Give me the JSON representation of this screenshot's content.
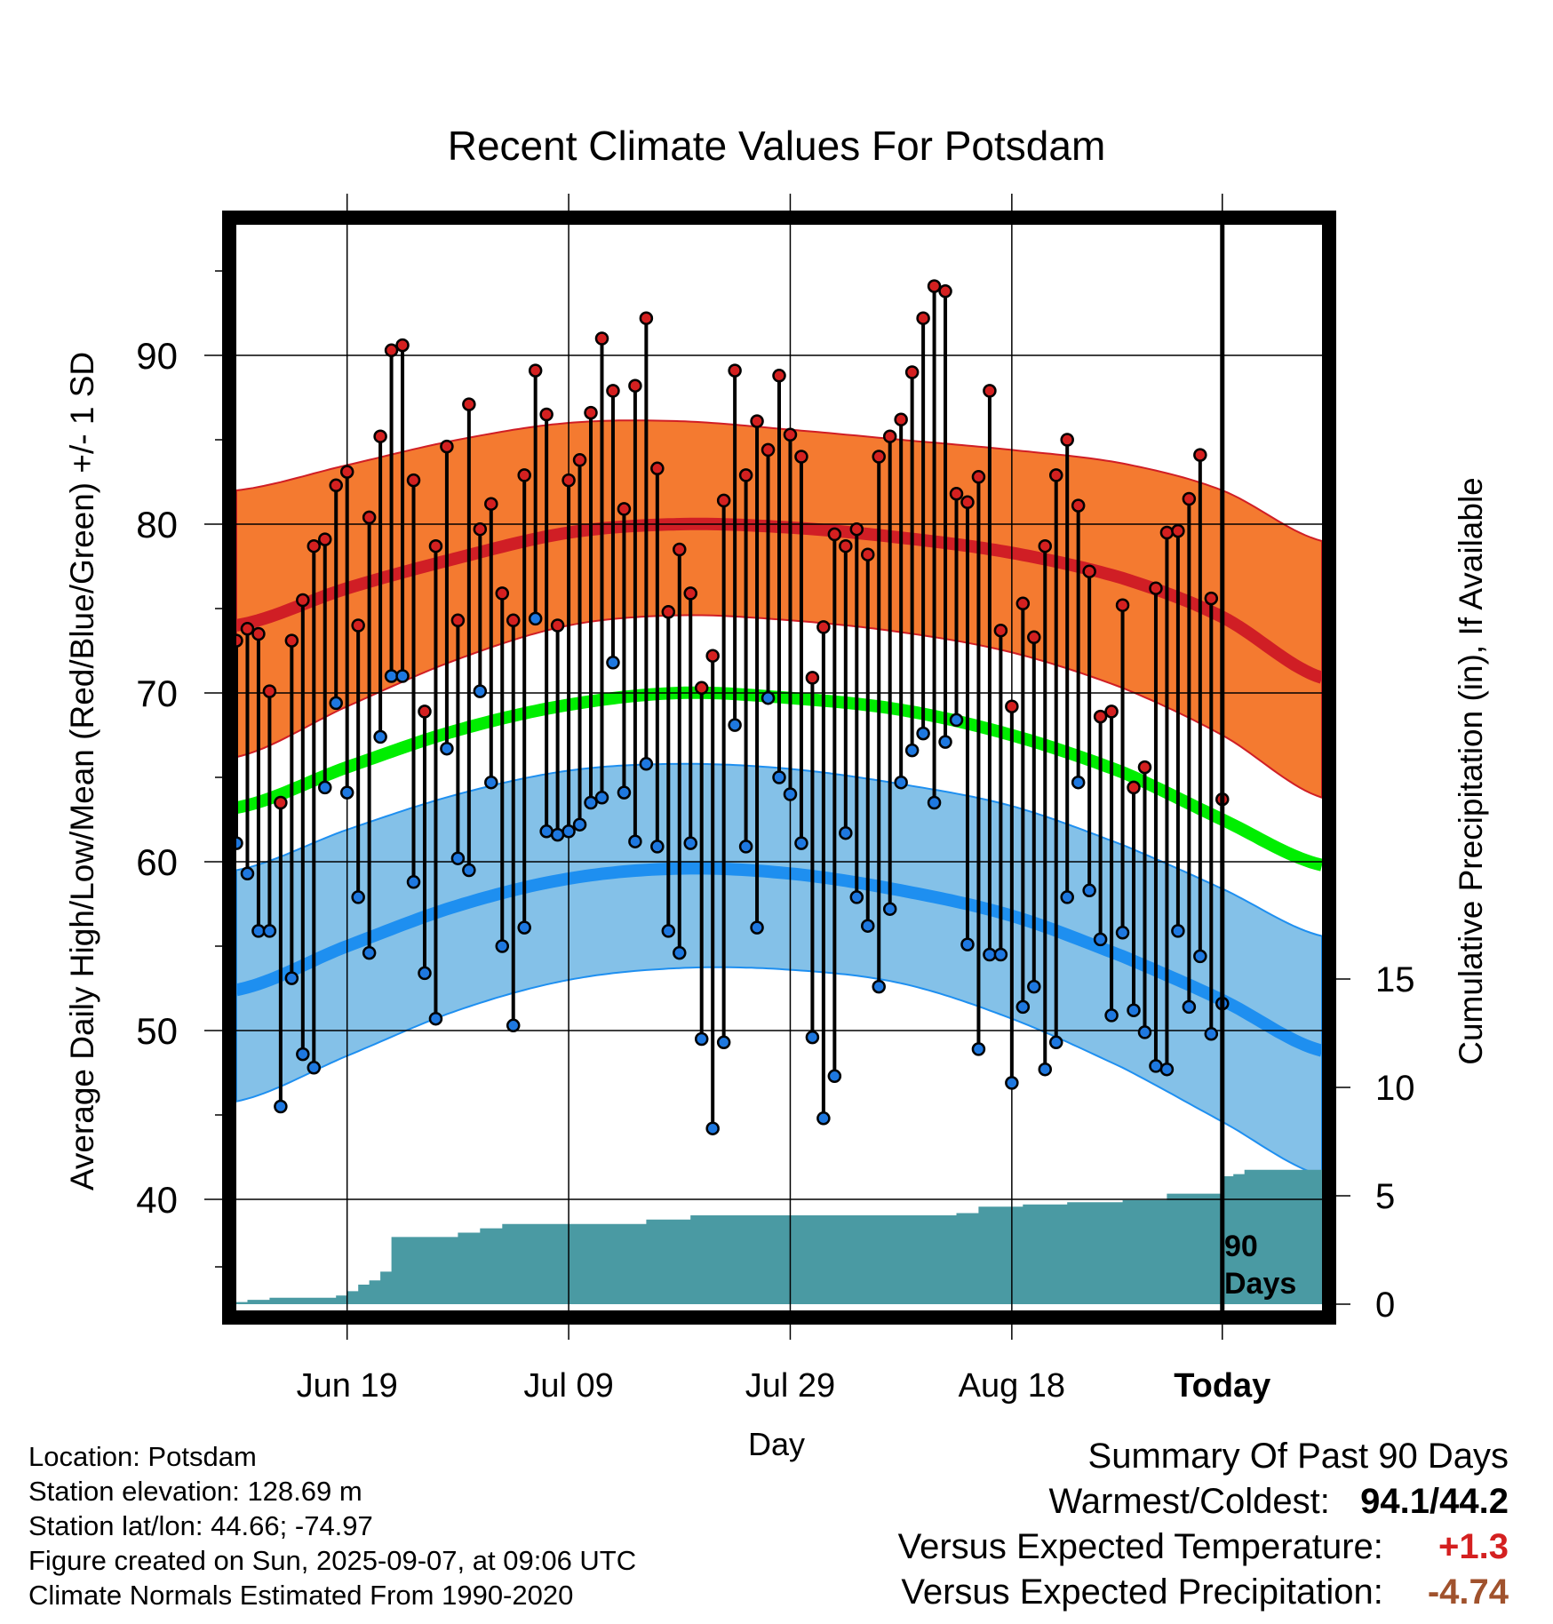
{
  "chart_data": {
    "type": "line",
    "title": "Recent Climate Values For Potsdam",
    "xlabel": "Day",
    "ylabel": "Average Daily High/Low/Mean (Red/Blue/Green) +/- 1 SD",
    "ylabel_right": "Cumulative Precipitation (in), If Available",
    "ylim": [
      35,
      99
    ],
    "ylim_right": [
      0,
      20
    ],
    "x_tick_labels": [
      "Jun 19",
      "Jul 09",
      "Jul 29",
      "Aug 18",
      "Today"
    ],
    "y_ticks": [
      40,
      50,
      60,
      70,
      80,
      90
    ],
    "y_ticks_right": [
      0,
      5,
      10,
      15
    ],
    "today_marker_label": [
      "90",
      "Days"
    ],
    "x_days": {
      "start": -89,
      "end": 9,
      "today": 0,
      "tick_days": [
        -79,
        -59,
        -39,
        -19,
        0
      ]
    },
    "normals": {
      "high_mean": [
        [
          -89,
          74.0
        ],
        [
          -79,
          76.2
        ],
        [
          -69,
          78.0
        ],
        [
          -59,
          79.5
        ],
        [
          -49,
          80.0
        ],
        [
          -39,
          79.8
        ],
        [
          -29,
          79.2
        ],
        [
          -19,
          78.3
        ],
        [
          -9,
          76.8
        ],
        [
          0,
          74.5
        ],
        [
          9,
          70.9
        ]
      ],
      "high_upper": [
        [
          -89,
          82.0
        ],
        [
          -79,
          83.5
        ],
        [
          -69,
          85.0
        ],
        [
          -59,
          86.0
        ],
        [
          -49,
          86.1
        ],
        [
          -39,
          85.6
        ],
        [
          -29,
          85.0
        ],
        [
          -19,
          84.4
        ],
        [
          -9,
          83.6
        ],
        [
          0,
          82.0
        ],
        [
          9,
          79.0
        ]
      ],
      "high_lower": [
        [
          -89,
          66.2
        ],
        [
          -79,
          69.2
        ],
        [
          -69,
          72.0
        ],
        [
          -59,
          74.0
        ],
        [
          -49,
          74.6
        ],
        [
          -39,
          74.3
        ],
        [
          -29,
          73.6
        ],
        [
          -19,
          72.4
        ],
        [
          -9,
          70.3
        ],
        [
          0,
          67.5
        ],
        [
          9,
          63.8
        ]
      ],
      "mean": [
        [
          -89,
          63.2
        ],
        [
          -79,
          65.6
        ],
        [
          -69,
          67.8
        ],
        [
          -59,
          69.3
        ],
        [
          -49,
          70.0
        ],
        [
          -39,
          69.7
        ],
        [
          -29,
          69.0
        ],
        [
          -19,
          67.5
        ],
        [
          -9,
          65.3
        ],
        [
          0,
          62.5
        ],
        [
          9,
          59.8
        ]
      ],
      "low_mean": [
        [
          -89,
          52.4
        ],
        [
          -79,
          55.0
        ],
        [
          -69,
          57.4
        ],
        [
          -59,
          59.0
        ],
        [
          -49,
          59.6
        ],
        [
          -39,
          59.3
        ],
        [
          -29,
          58.3
        ],
        [
          -19,
          56.8
        ],
        [
          -9,
          54.4
        ],
        [
          0,
          51.8
        ],
        [
          9,
          48.8
        ]
      ],
      "low_upper": [
        [
          -89,
          59.5
        ],
        [
          -79,
          61.9
        ],
        [
          -69,
          64.0
        ],
        [
          -59,
          65.4
        ],
        [
          -49,
          65.8
        ],
        [
          -39,
          65.5
        ],
        [
          -29,
          64.6
        ],
        [
          -19,
          63.3
        ],
        [
          -9,
          61.0
        ],
        [
          0,
          58.4
        ],
        [
          9,
          55.6
        ]
      ],
      "low_lower": [
        [
          -89,
          45.8
        ],
        [
          -79,
          48.5
        ],
        [
          -69,
          51.2
        ],
        [
          -59,
          53.0
        ],
        [
          -49,
          53.7
        ],
        [
          -39,
          53.6
        ],
        [
          -29,
          52.8
        ],
        [
          -19,
          50.7
        ],
        [
          -9,
          47.8
        ],
        [
          0,
          44.6
        ],
        [
          9,
          41.4
        ]
      ]
    },
    "daily_highs": [
      73.1,
      73.8,
      73.5,
      70.1,
      63.5,
      73.1,
      75.5,
      78.7,
      79.1,
      82.3,
      83.1,
      74.0,
      80.4,
      85.2,
      90.3,
      90.6,
      82.6,
      68.9,
      78.7,
      84.6,
      74.3,
      87.1,
      79.7,
      81.2,
      75.9,
      74.3,
      82.9,
      89.1,
      86.5,
      74.0,
      82.6,
      83.8,
      86.6,
      91.0,
      87.9,
      80.9,
      88.2,
      92.2,
      83.3,
      74.8,
      78.5,
      75.9,
      70.3,
      72.2,
      81.4,
      89.1,
      82.9,
      86.1,
      84.4,
      88.8,
      85.3,
      84.0,
      70.9,
      73.9,
      79.4,
      78.7,
      79.7,
      78.2,
      84.0,
      85.2,
      86.2,
      89.0,
      92.2,
      94.1,
      93.8,
      81.8,
      81.3,
      82.8,
      87.9,
      73.7,
      69.2,
      75.3,
      73.3,
      78.7,
      82.9,
      85.0,
      81.1,
      77.2,
      68.6,
      68.9,
      75.2,
      64.4,
      65.6,
      76.2,
      79.5,
      79.6,
      81.5,
      84.1,
      75.6,
      63.7
    ],
    "daily_lows": [
      61.1,
      59.3,
      55.9,
      55.9,
      45.5,
      53.1,
      48.6,
      47.8,
      64.4,
      69.4,
      64.1,
      57.9,
      54.6,
      67.4,
      71.0,
      71.0,
      58.8,
      53.4,
      50.7,
      66.7,
      60.2,
      59.5,
      70.1,
      64.7,
      55.0,
      50.3,
      56.1,
      74.4,
      61.8,
      61.6,
      61.8,
      62.2,
      63.5,
      63.8,
      71.8,
      64.1,
      61.2,
      65.8,
      60.9,
      55.9,
      54.6,
      61.1,
      49.5,
      44.2,
      49.3,
      68.1,
      60.9,
      56.1,
      69.7,
      65.0,
      64.0,
      61.1,
      49.6,
      44.8,
      47.3,
      61.7,
      57.9,
      56.2,
      52.6,
      57.2,
      64.7,
      66.6,
      67.6,
      63.5,
      67.1,
      68.4,
      55.1,
      48.9,
      54.5,
      54.5,
      46.9,
      51.4,
      52.6,
      47.7,
      49.3,
      57.9,
      64.7,
      58.3,
      55.4,
      50.9,
      55.8,
      51.2,
      49.9,
      47.9,
      47.7,
      55.9,
      51.4,
      54.4,
      49.8,
      51.6
    ],
    "cumulative_precip": [
      [
        -89,
        0.1
      ],
      [
        -88,
        0.2
      ],
      [
        -86,
        0.3
      ],
      [
        -80,
        0.4
      ],
      [
        -79,
        0.6
      ],
      [
        -78,
        0.9
      ],
      [
        -77,
        1.1
      ],
      [
        -76,
        1.5
      ],
      [
        -75,
        3.1
      ],
      [
        -69,
        3.3
      ],
      [
        -67,
        3.5
      ],
      [
        -65,
        3.7
      ],
      [
        -55,
        3.7
      ],
      [
        -52,
        3.9
      ],
      [
        -48,
        4.1
      ],
      [
        -44,
        4.1
      ],
      [
        -26,
        4.1
      ],
      [
        -24,
        4.2
      ],
      [
        -22,
        4.5
      ],
      [
        -18,
        4.6
      ],
      [
        -14,
        4.7
      ],
      [
        -11,
        4.7
      ],
      [
        -9,
        4.8
      ],
      [
        -6,
        4.8
      ],
      [
        -5,
        5.1
      ],
      [
        -1,
        5.1
      ],
      [
        0,
        5.9
      ],
      [
        1,
        6.0
      ],
      [
        2,
        6.2
      ],
      [
        9,
        6.2
      ]
    ]
  },
  "footer": {
    "location": "Location: Potsdam",
    "elevation": "Station elevation: 128.69 m",
    "latlon": "Station lat/lon: 44.66; -74.97",
    "created": "Figure created on Sun, 2025-09-07, at 09:06 UTC",
    "normals": "Climate Normals Estimated From 1990-2020"
  },
  "summary": {
    "title": "Summary Of Past 90 Days",
    "warm_cold_label": "Warmest/Coldest:",
    "warm_cold_value": "94.1/44.2",
    "temp_label": "Versus Expected Temperature:",
    "temp_value": "+1.3",
    "precip_label": "Versus Expected Precipitation:",
    "precip_value": "-4.74"
  },
  "colors": {
    "high_band": "#f47a30",
    "high_line": "#d01e25",
    "mean_line": "#00ee00",
    "low_band": "#84c1e8",
    "low_line": "#1e8ff0",
    "precip_fill": "#4a9aa3",
    "high_dot": "#d42020",
    "low_dot": "#1e78e0",
    "summary_warm": "#d42020",
    "summary_dry": "#a0522d"
  }
}
